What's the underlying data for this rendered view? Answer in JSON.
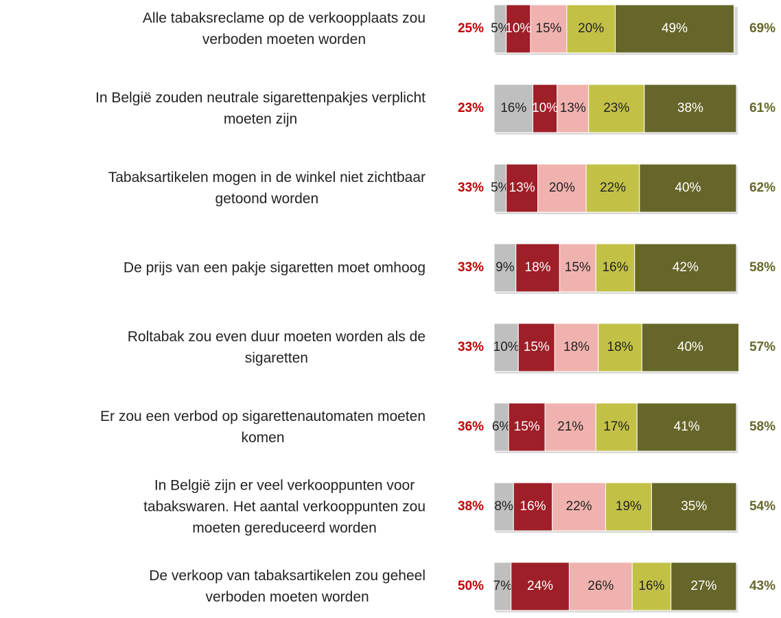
{
  "chart_data": {
    "type": "stacked_bar_horizontal",
    "categories": [
      "Alle tabaksreclame op de verkoopplaats zou\nverboden moeten worden",
      "In België zouden neutrale sigarettenpakjes verplicht\nmoeten zijn",
      "Tabaksartikelen mogen in de winkel niet zichtbaar\ngetoond worden",
      "De prijs van een pakje sigaretten moet omhoog",
      "Roltabak zou even duur moeten worden als de\nsigaretten",
      "Er zou een verbod op sigarettenautomaten moeten\nkomen",
      "In België zijn er veel verkooppunten voor\ntabakswaren. Het aantal verkooppunten zou\nmoeten gereduceerd worden",
      "De verkoop van tabaksartikelen zou geheel\nverboden moeten worden"
    ],
    "xlim": [
      0,
      100
    ],
    "series": [
      {
        "color": "#bfbfbf",
        "text_color": "#222222",
        "values": [
          5,
          16,
          5,
          9,
          10,
          6,
          8,
          7
        ],
        "value_labels": [
          "5%",
          "16%",
          "5%",
          "9%",
          "10%",
          "6%",
          "8%",
          "7%"
        ]
      },
      {
        "color": "#9e1f28",
        "text_color": "#ffffff",
        "values": [
          10,
          10,
          13,
          18,
          15,
          15,
          16,
          24
        ],
        "value_labels": [
          "10%",
          "10%",
          "13%",
          "18%",
          "15%",
          "15%",
          "16%",
          "24%"
        ]
      },
      {
        "color": "#f0b2ae",
        "text_color": "#222222",
        "values": [
          15,
          13,
          20,
          15,
          18,
          21,
          22,
          26
        ],
        "value_labels": [
          "15%",
          "13%",
          "20%",
          "15%",
          "18%",
          "21%",
          "22%",
          "26%"
        ]
      },
      {
        "color": "#c2c146",
        "text_color": "#222222",
        "values": [
          20,
          23,
          22,
          16,
          18,
          17,
          19,
          16
        ],
        "value_labels": [
          "20%",
          "23%",
          "22%",
          "16%",
          "18%",
          "17%",
          "19%",
          "16%"
        ]
      },
      {
        "color": "#66662a",
        "text_color": "#ffffff",
        "values": [
          49,
          38,
          40,
          42,
          40,
          41,
          35,
          27
        ],
        "value_labels": [
          "49%",
          "38%",
          "40%",
          "42%",
          "40%",
          "41%",
          "35%",
          "27%"
        ]
      }
    ],
    "totals_left": {
      "color": "#c00000",
      "values": [
        25,
        23,
        33,
        33,
        33,
        36,
        38,
        50
      ],
      "value_labels": [
        "25%",
        "23%",
        "33%",
        "33%",
        "33%",
        "36%",
        "38%",
        "50%"
      ]
    },
    "totals_right": {
      "color": "#66662a",
      "values": [
        69,
        61,
        62,
        58,
        57,
        58,
        54,
        43
      ],
      "value_labels": [
        "69%",
        "61%",
        "62%",
        "58%",
        "57%",
        "58%",
        "54%",
        "43%"
      ]
    }
  }
}
